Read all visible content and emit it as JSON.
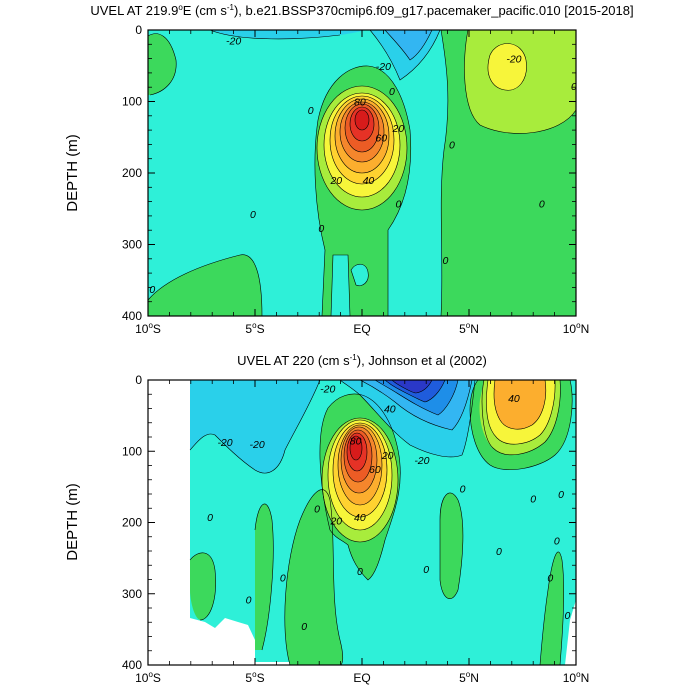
{
  "chart_data": [
    {
      "type": "contour",
      "title_parts": [
        "UVEL AT 219.9",
        "o",
        "E (cm s",
        "-1",
        "), b.e21.BSSP370cmip6.f09_g17.pacemaker_pacific.010 [2015-2018]"
      ],
      "ylabel": "DEPTH (m)",
      "xlabel": "",
      "xticks": [
        {
          "v": -10,
          "main": "10",
          "deg": "o",
          "hemi": "S"
        },
        {
          "v": -5,
          "main": "5",
          "deg": "o",
          "hemi": "S"
        },
        {
          "v": 0,
          "main": "EQ",
          "deg": "",
          "hemi": ""
        },
        {
          "v": 5,
          "main": "5",
          "deg": "o",
          "hemi": "N"
        },
        {
          "v": 10,
          "main": "10",
          "deg": "o",
          "hemi": "N"
        }
      ],
      "yticks": [
        "0",
        "100",
        "200",
        "300",
        "400"
      ],
      "xlim": [
        -10,
        10
      ],
      "ylim": [
        0,
        400
      ],
      "y_inverted": true,
      "contour_interval": 10,
      "contour_labels": [
        {
          "text": "-20",
          "lat": -6.0,
          "depth": 15
        },
        {
          "text": "-20",
          "lat": 1.0,
          "depth": 50
        },
        {
          "text": "-20",
          "lat": 7.1,
          "depth": 40
        },
        {
          "text": "0",
          "lat": 1.4,
          "depth": 85
        },
        {
          "text": "0",
          "lat": -2.4,
          "depth": 112
        },
        {
          "text": "80",
          "lat": -0.1,
          "depth": 100
        },
        {
          "text": "60",
          "lat": 0.9,
          "depth": 150
        },
        {
          "text": "20",
          "lat": 1.7,
          "depth": 137
        },
        {
          "text": "40",
          "lat": 0.3,
          "depth": 210
        },
        {
          "text": "20",
          "lat": -1.2,
          "depth": 210
        },
        {
          "text": "0",
          "lat": -5.1,
          "depth": 257
        },
        {
          "text": "0",
          "lat": -1.9,
          "depth": 277
        },
        {
          "text": "0",
          "lat": 4.2,
          "depth": 160
        },
        {
          "text": "0",
          "lat": 1.7,
          "depth": 243
        },
        {
          "text": "0",
          "lat": 3.9,
          "depth": 322
        },
        {
          "text": "0",
          "lat": 8.4,
          "depth": 243
        },
        {
          "text": "0",
          "lat": 9.9,
          "depth": 78
        },
        {
          "text": "0",
          "lat": -9.8,
          "depth": 362
        }
      ]
    },
    {
      "type": "contour",
      "title_parts": [
        "UVEL AT 220 (cm s",
        "-1",
        "), Johnson et al (2002)"
      ],
      "ylabel": "DEPTH (m)",
      "xlabel": "",
      "xticks": [
        {
          "v": -10,
          "main": "10",
          "deg": "o",
          "hemi": "S"
        },
        {
          "v": -5,
          "main": "5",
          "deg": "o",
          "hemi": "S"
        },
        {
          "v": 0,
          "main": "EQ",
          "deg": "",
          "hemi": ""
        },
        {
          "v": 5,
          "main": "5",
          "deg": "o",
          "hemi": "N"
        },
        {
          "v": 10,
          "main": "10",
          "deg": "o",
          "hemi": "N"
        }
      ],
      "yticks": [
        "0",
        "100",
        "200",
        "300",
        "400"
      ],
      "xlim": [
        -10,
        10
      ],
      "ylim": [
        0,
        400
      ],
      "y_inverted": true,
      "contour_interval": 10,
      "contour_labels": [
        {
          "text": "-20",
          "lat": -1.6,
          "depth": 12
        },
        {
          "text": "40",
          "lat": 1.3,
          "depth": 40
        },
        {
          "text": "40",
          "lat": 7.1,
          "depth": 25
        },
        {
          "text": "-20",
          "lat": -6.4,
          "depth": 87
        },
        {
          "text": "-20",
          "lat": -4.9,
          "depth": 90
        },
        {
          "text": "80",
          "lat": -0.3,
          "depth": 85
        },
        {
          "text": "60",
          "lat": 0.6,
          "depth": 125
        },
        {
          "text": "20",
          "lat": 1.2,
          "depth": 105
        },
        {
          "text": "-20",
          "lat": 2.8,
          "depth": 112
        },
        {
          "text": "40",
          "lat": -0.1,
          "depth": 192
        },
        {
          "text": "20",
          "lat": -1.2,
          "depth": 197
        },
        {
          "text": "0",
          "lat": 4.7,
          "depth": 152
        },
        {
          "text": "0",
          "lat": 8.0,
          "depth": 166
        },
        {
          "text": "0",
          "lat": 9.3,
          "depth": 160
        },
        {
          "text": "0",
          "lat": -2.1,
          "depth": 180
        },
        {
          "text": "0",
          "lat": -7.1,
          "depth": 192
        },
        {
          "text": "0",
          "lat": 3.0,
          "depth": 265
        },
        {
          "text": "0",
          "lat": 6.4,
          "depth": 240
        },
        {
          "text": "0",
          "lat": -0.1,
          "depth": 268
        },
        {
          "text": "0",
          "lat": 9.1,
          "depth": 225
        },
        {
          "text": "0",
          "lat": -3.7,
          "depth": 277
        },
        {
          "text": "0",
          "lat": 8.8,
          "depth": 277
        },
        {
          "text": "0",
          "lat": -5.3,
          "depth": 308
        },
        {
          "text": "0",
          "lat": -2.7,
          "depth": 345
        },
        {
          "text": "0",
          "lat": 9.6,
          "depth": 330
        }
      ]
    }
  ]
}
